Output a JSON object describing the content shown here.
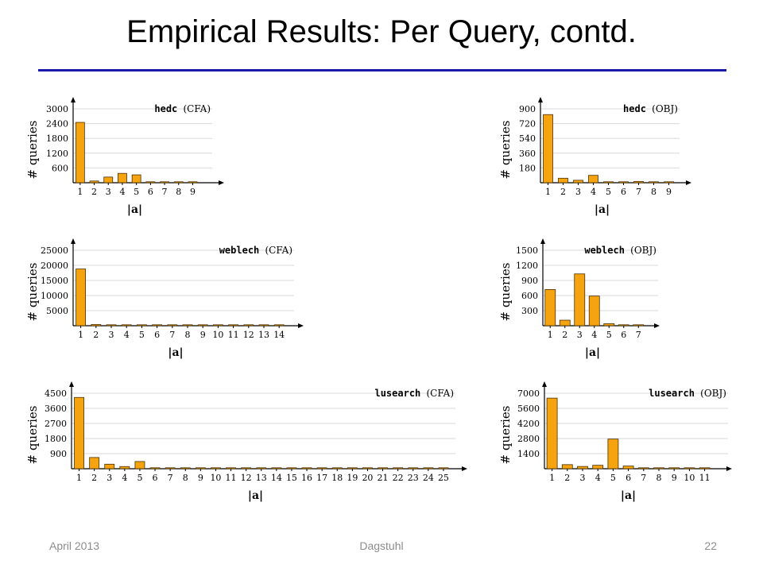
{
  "slide": {
    "title": "Empirical Results: Per Query, contd.",
    "footer_left": "April 2013",
    "footer_center": "Dagstuhl",
    "footer_right": "22"
  },
  "colors": {
    "bar_fill": "#f5a30f",
    "bar_stroke": "#4a3000",
    "rule": "#1a1aa8",
    "grid": "#d9d9d9"
  },
  "chart_data": [
    {
      "type": "bar",
      "title_name": "hedc",
      "title_kind": "CFA",
      "ylabel": "# queries",
      "xlabel": "|a|",
      "yticks": [
        600,
        1200,
        1800,
        2400,
        3000
      ],
      "ylim": [
        0,
        3000
      ],
      "categories": [
        "1",
        "2",
        "3",
        "4",
        "5",
        "6",
        "7",
        "8",
        "9"
      ],
      "values": [
        2450,
        70,
        230,
        380,
        320,
        10,
        10,
        5,
        5
      ],
      "legend": "top-right",
      "grid": true
    },
    {
      "type": "bar",
      "title_name": "hedc",
      "title_kind": "OBJ",
      "ylabel": "# queries",
      "xlabel": "|a|",
      "yticks": [
        180,
        360,
        540,
        720,
        900
      ],
      "ylim": [
        0,
        900
      ],
      "categories": [
        "1",
        "2",
        "3",
        "4",
        "5",
        "6",
        "7",
        "8",
        "9"
      ],
      "values": [
        830,
        55,
        30,
        90,
        5,
        0,
        15,
        0,
        5
      ],
      "legend": "top-right",
      "grid": true
    },
    {
      "type": "bar",
      "title_name": "weblech",
      "title_kind": "CFA",
      "ylabel": "# queries",
      "xlabel": "|a|",
      "yticks": [
        5000,
        10000,
        15000,
        20000,
        25000
      ],
      "ylim": [
        0,
        25000
      ],
      "categories": [
        "1",
        "2",
        "3",
        "4",
        "5",
        "6",
        "7",
        "8",
        "9",
        "10",
        "11",
        "12",
        "13",
        "14"
      ],
      "values": [
        18800,
        400,
        150,
        180,
        150,
        100,
        160,
        60,
        40,
        30,
        20,
        20,
        10,
        10
      ],
      "legend": "top-right",
      "grid": true
    },
    {
      "type": "bar",
      "title_name": "weblech",
      "title_kind": "OBJ",
      "ylabel": "# queries",
      "xlabel": "|a|",
      "yticks": [
        300,
        600,
        900,
        1200,
        1500
      ],
      "ylim": [
        0,
        1500
      ],
      "categories": [
        "1",
        "2",
        "3",
        "4",
        "5",
        "6",
        "7"
      ],
      "values": [
        720,
        110,
        1030,
        590,
        40,
        10,
        5
      ],
      "legend": "top-right",
      "grid": true
    },
    {
      "type": "bar",
      "title_name": "lusearch",
      "title_kind": "CFA",
      "ylabel": "# queries",
      "xlabel": "|a|",
      "yticks": [
        900,
        1800,
        2700,
        3600,
        4500
      ],
      "ylim": [
        0,
        4500
      ],
      "categories": [
        "1",
        "2",
        "3",
        "4",
        "5",
        "6",
        "7",
        "8",
        "9",
        "10",
        "11",
        "12",
        "13",
        "14",
        "15",
        "16",
        "17",
        "18",
        "19",
        "20",
        "21",
        "22",
        "23",
        "24",
        "25"
      ],
      "values": [
        4250,
        670,
        270,
        130,
        430,
        30,
        20,
        20,
        20,
        40,
        10,
        10,
        10,
        20,
        5,
        5,
        5,
        5,
        5,
        5,
        5,
        5,
        5,
        10,
        10
      ],
      "legend": "top-right",
      "grid": true
    },
    {
      "type": "bar",
      "title_name": "lusearch",
      "title_kind": "OBJ",
      "ylabel": "# queries",
      "xlabel": "|a|",
      "yticks": [
        1400,
        2800,
        4200,
        5600,
        7000
      ],
      "ylim": [
        0,
        7000
      ],
      "categories": [
        "1",
        "2",
        "3",
        "4",
        "5",
        "6",
        "7",
        "8",
        "9",
        "10",
        "11"
      ],
      "values": [
        6550,
        380,
        210,
        320,
        2750,
        250,
        10,
        10,
        20,
        10,
        10
      ],
      "legend": "top-right",
      "grid": true
    }
  ]
}
